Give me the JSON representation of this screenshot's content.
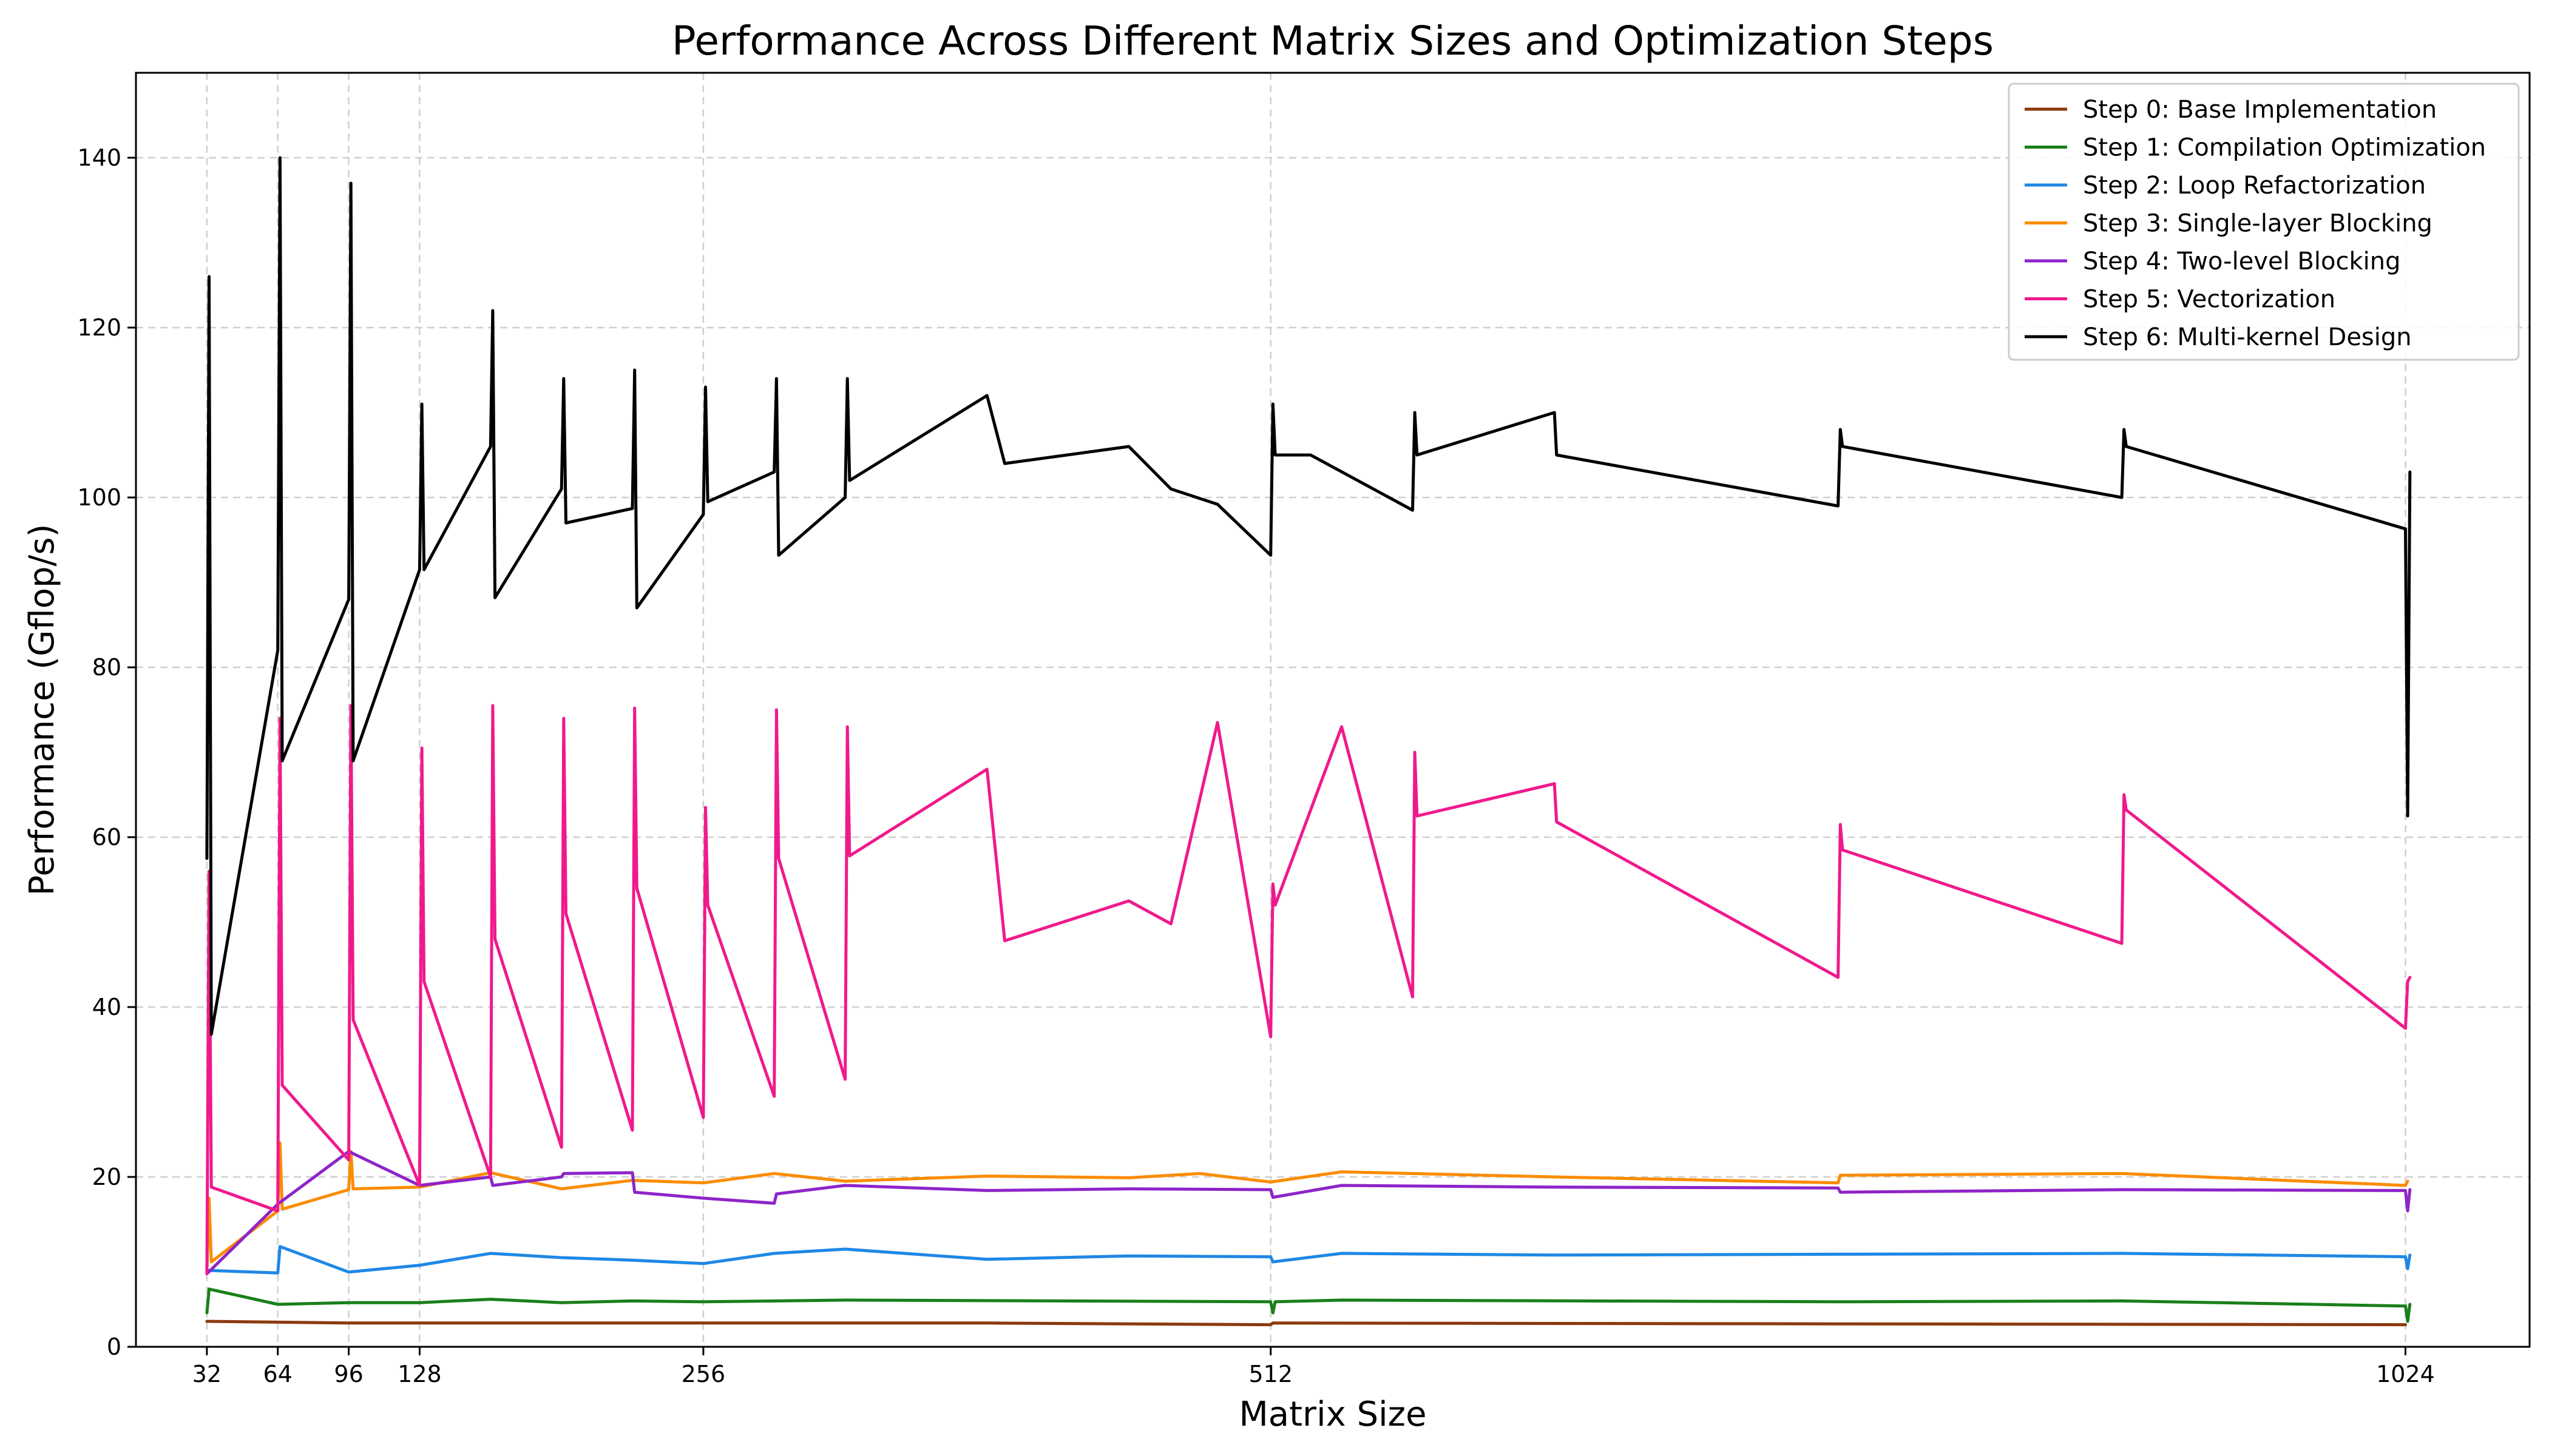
{
  "chart_data": {
    "type": "line",
    "title": "Performance Across Different Matrix Sizes and Optimization Steps",
    "xlabel": "Matrix Size",
    "ylabel": "Performance (Gflop/s)",
    "xlim": [
      0,
      1080
    ],
    "ylim": [
      0,
      150
    ],
    "xticks": [
      32,
      64,
      96,
      128,
      256,
      512,
      1024
    ],
    "yticks": [
      0,
      20,
      40,
      60,
      80,
      100,
      120,
      140
    ],
    "grid": true,
    "legend_position": "top-right",
    "series": [
      {
        "name": "Step 0: Base Implementation",
        "color": "#8B3A0E",
        "points": [
          [
            32,
            3.0
          ],
          [
            64,
            2.9
          ],
          [
            96,
            2.8
          ],
          [
            128,
            2.8
          ],
          [
            256,
            2.8
          ],
          [
            384,
            2.8
          ],
          [
            512,
            2.6
          ],
          [
            513,
            2.8
          ],
          [
            768,
            2.7
          ],
          [
            1024,
            2.6
          ]
        ]
      },
      {
        "name": "Step 1: Compilation Optimization",
        "color": "#1A7F1A",
        "points": [
          [
            32,
            4.0
          ],
          [
            33,
            6.8
          ],
          [
            64,
            5.0
          ],
          [
            96,
            5.2
          ],
          [
            128,
            5.2
          ],
          [
            160,
            5.6
          ],
          [
            192,
            5.2
          ],
          [
            224,
            5.4
          ],
          [
            256,
            5.3
          ],
          [
            320,
            5.5
          ],
          [
            512,
            5.3
          ],
          [
            513,
            4.0
          ],
          [
            514,
            5.3
          ],
          [
            544,
            5.5
          ],
          [
            768,
            5.3
          ],
          [
            896,
            5.4
          ],
          [
            1024,
            4.8
          ],
          [
            1025,
            3.0
          ],
          [
            1026,
            5.0
          ]
        ]
      },
      {
        "name": "Step 2: Loop Refactorization",
        "color": "#1E88E5",
        "points": [
          [
            32,
            9.0
          ],
          [
            64,
            8.7
          ],
          [
            65,
            11.8
          ],
          [
            96,
            8.8
          ],
          [
            128,
            9.6
          ],
          [
            160,
            11.0
          ],
          [
            192,
            10.5
          ],
          [
            224,
            10.2
          ],
          [
            256,
            9.8
          ],
          [
            288,
            11.0
          ],
          [
            320,
            11.5
          ],
          [
            384,
            10.3
          ],
          [
            448,
            10.7
          ],
          [
            512,
            10.6
          ],
          [
            513,
            10.0
          ],
          [
            544,
            11.0
          ],
          [
            640,
            10.8
          ],
          [
            768,
            10.9
          ],
          [
            896,
            11.0
          ],
          [
            1024,
            10.6
          ],
          [
            1025,
            9.2
          ],
          [
            1026,
            10.8
          ]
        ]
      },
      {
        "name": "Step 3: Single-layer Blocking",
        "color": "#FB8C00",
        "points": [
          [
            32,
            8.8
          ],
          [
            33,
            17.5
          ],
          [
            34,
            10.0
          ],
          [
            64,
            16.0
          ],
          [
            65,
            24.0
          ],
          [
            66,
            16.2
          ],
          [
            96,
            18.5
          ],
          [
            97,
            23.0
          ],
          [
            98,
            18.6
          ],
          [
            128,
            18.8
          ],
          [
            160,
            20.5
          ],
          [
            192,
            18.6
          ],
          [
            224,
            19.6
          ],
          [
            256,
            19.3
          ],
          [
            288,
            20.4
          ],
          [
            320,
            19.5
          ],
          [
            384,
            20.1
          ],
          [
            448,
            19.9
          ],
          [
            480,
            20.4
          ],
          [
            512,
            19.4
          ],
          [
            544,
            20.6
          ],
          [
            640,
            20.0
          ],
          [
            768,
            19.3
          ],
          [
            769,
            20.2
          ],
          [
            896,
            20.4
          ],
          [
            1024,
            19.0
          ],
          [
            1025,
            19.5
          ]
        ]
      },
      {
        "name": "Step 4: Two-level Blocking",
        "color": "#8E24C8",
        "points": [
          [
            32,
            8.6
          ],
          [
            64,
            16.8
          ],
          [
            96,
            23.0
          ],
          [
            128,
            19.0
          ],
          [
            160,
            20.0
          ],
          [
            161,
            19.0
          ],
          [
            192,
            20.0
          ],
          [
            193,
            20.4
          ],
          [
            224,
            20.5
          ],
          [
            225,
            18.2
          ],
          [
            256,
            17.5
          ],
          [
            288,
            16.9
          ],
          [
            289,
            18.0
          ],
          [
            320,
            19.0
          ],
          [
            384,
            18.4
          ],
          [
            448,
            18.6
          ],
          [
            512,
            18.5
          ],
          [
            513,
            17.6
          ],
          [
            544,
            19.0
          ],
          [
            640,
            18.8
          ],
          [
            768,
            18.7
          ],
          [
            769,
            18.2
          ],
          [
            896,
            18.5
          ],
          [
            1024,
            18.4
          ],
          [
            1025,
            16.0
          ],
          [
            1026,
            18.5
          ]
        ]
      },
      {
        "name": "Step 5: Vectorization",
        "color": "#F0198C",
        "points": [
          [
            32,
            8.6
          ],
          [
            33,
            56.0
          ],
          [
            34,
            18.8
          ],
          [
            64,
            16.0
          ],
          [
            65,
            74.0
          ],
          [
            66,
            30.8
          ],
          [
            96,
            22.0
          ],
          [
            97,
            75.5
          ],
          [
            98,
            38.5
          ],
          [
            128,
            19.0
          ],
          [
            129,
            70.5
          ],
          [
            130,
            43.0
          ],
          [
            160,
            20.0
          ],
          [
            161,
            75.5
          ],
          [
            162,
            48.0
          ],
          [
            192,
            23.5
          ],
          [
            193,
            74.0
          ],
          [
            194,
            51.0
          ],
          [
            224,
            25.5
          ],
          [
            225,
            75.2
          ],
          [
            226,
            54.0
          ],
          [
            256,
            27.0
          ],
          [
            257,
            63.5
          ],
          [
            258,
            52.0
          ],
          [
            288,
            29.5
          ],
          [
            289,
            75.0
          ],
          [
            290,
            57.5
          ],
          [
            320,
            31.5
          ],
          [
            321,
            73.0
          ],
          [
            322,
            57.8
          ],
          [
            384,
            68.0
          ],
          [
            392,
            47.8
          ],
          [
            448,
            52.5
          ],
          [
            467,
            49.8
          ],
          [
            488,
            73.5
          ],
          [
            512,
            36.5
          ],
          [
            513,
            54.5
          ],
          [
            514,
            52.0
          ],
          [
            544,
            73.0
          ],
          [
            576,
            41.2
          ],
          [
            577,
            70.0
          ],
          [
            578,
            62.5
          ],
          [
            640,
            66.3
          ],
          [
            641,
            61.8
          ],
          [
            768,
            43.5
          ],
          [
            769,
            61.5
          ],
          [
            770,
            58.5
          ],
          [
            896,
            47.5
          ],
          [
            897,
            65.0
          ],
          [
            898,
            63.2
          ],
          [
            1024,
            37.5
          ],
          [
            1025,
            43.0
          ],
          [
            1026,
            43.5
          ]
        ]
      },
      {
        "name": "Step 6: Multi-kernel Design",
        "color": "#000000",
        "points": [
          [
            32,
            57.5
          ],
          [
            33,
            126.0
          ],
          [
            34,
            36.8
          ],
          [
            64,
            82.0
          ],
          [
            65,
            140.0
          ],
          [
            66,
            69.0
          ],
          [
            96,
            88.0
          ],
          [
            97,
            137.0
          ],
          [
            98,
            69.0
          ],
          [
            128,
            91.5
          ],
          [
            129,
            111.0
          ],
          [
            130,
            91.5
          ],
          [
            160,
            106.0
          ],
          [
            161,
            122.0
          ],
          [
            162,
            88.2
          ],
          [
            192,
            101.0
          ],
          [
            193,
            114.0
          ],
          [
            194,
            97.0
          ],
          [
            224,
            98.7
          ],
          [
            225,
            115.0
          ],
          [
            226,
            87.0
          ],
          [
            256,
            98.0
          ],
          [
            257,
            113.0
          ],
          [
            258,
            99.5
          ],
          [
            288,
            103.0
          ],
          [
            289,
            114.0
          ],
          [
            290,
            93.2
          ],
          [
            320,
            100.0
          ],
          [
            321,
            114.0
          ],
          [
            322,
            102.0
          ],
          [
            384,
            112.0
          ],
          [
            392,
            104.0
          ],
          [
            448,
            106.0
          ],
          [
            467,
            101.0
          ],
          [
            488,
            99.2
          ],
          [
            512,
            93.2
          ],
          [
            513,
            111.0
          ],
          [
            514,
            105.0
          ],
          [
            530,
            105.0
          ],
          [
            576,
            98.5
          ],
          [
            577,
            110.0
          ],
          [
            578,
            105.0
          ],
          [
            640,
            110.0
          ],
          [
            641,
            105.0
          ],
          [
            768,
            99.0
          ],
          [
            769,
            108.0
          ],
          [
            770,
            106.0
          ],
          [
            896,
            100.0
          ],
          [
            897,
            108.0
          ],
          [
            898,
            106.0
          ],
          [
            1024,
            96.3
          ],
          [
            1025,
            62.5
          ],
          [
            1026,
            103.0
          ]
        ]
      }
    ]
  }
}
